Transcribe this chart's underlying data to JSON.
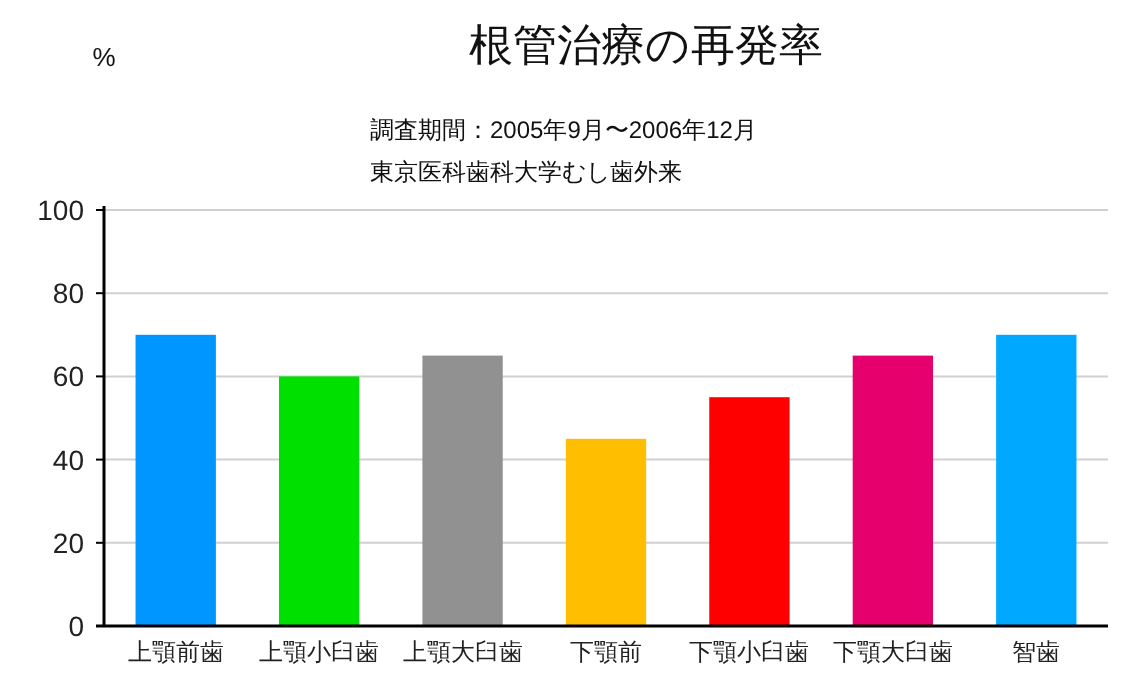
{
  "chart_data": {
    "type": "bar",
    "title": "根管治療の再発率",
    "ylabel": "%",
    "annotations": [
      "調査期間：2005年9月〜2006年12月",
      "東京医科歯科大学むし歯外来"
    ],
    "categories": [
      "上顎前歯",
      "上顎小臼歯",
      "上顎大臼歯",
      "下顎前",
      "下顎小臼歯",
      "下顎大臼歯",
      "智歯"
    ],
    "values": [
      70,
      60,
      65,
      45,
      55,
      65,
      70
    ],
    "colors": [
      "#0096ff",
      "#00e000",
      "#919191",
      "#ffbe00",
      "#ff0000",
      "#e6006e",
      "#00a8ff"
    ],
    "ylim": [
      0,
      100
    ],
    "yticks": [
      0,
      20,
      40,
      60,
      80,
      100
    ],
    "grid": "y"
  }
}
